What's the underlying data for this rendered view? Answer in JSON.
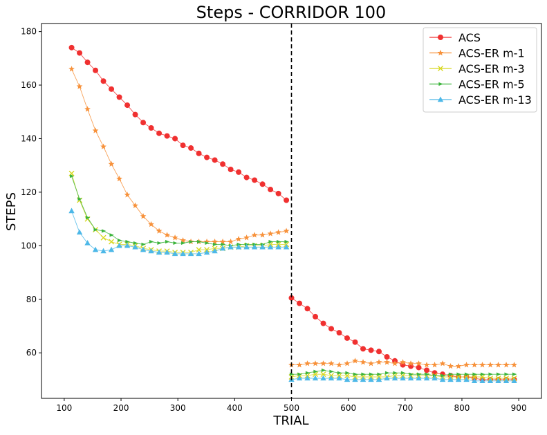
{
  "chart_data": {
    "type": "line",
    "title": "Steps - CORRIDOR 100",
    "xlabel": "TRIAL",
    "ylabel": "STEPS",
    "xlim": [
      60,
      940
    ],
    "ylim": [
      43,
      183
    ],
    "xticks": [
      100,
      200,
      300,
      400,
      500,
      600,
      700,
      800,
      900
    ],
    "yticks": [
      60,
      80,
      100,
      120,
      140,
      160,
      180
    ],
    "grid": false,
    "legend_position": "top-right",
    "vline": {
      "x": 500,
      "style": "dashed",
      "color": "#000000"
    },
    "series": [
      {
        "name": "ACS",
        "color": "#f03030",
        "marker": "circle",
        "x": [
          113,
          127,
          141,
          155,
          169,
          183,
          197,
          211,
          225,
          239,
          253,
          267,
          281,
          295,
          309,
          323,
          337,
          351,
          365,
          379,
          393,
          407,
          421,
          435,
          449,
          463,
          477,
          491,
          500,
          514,
          528,
          542,
          556,
          570,
          584,
          598,
          612,
          626,
          640,
          654,
          668,
          682,
          696,
          710,
          724,
          738,
          752,
          766,
          780,
          794,
          808,
          822,
          836,
          850,
          864,
          878,
          892
        ],
        "y": [
          174,
          172,
          168.5,
          165.5,
          161.5,
          158.5,
          155.5,
          152.5,
          149,
          146,
          144,
          142,
          141,
          140,
          137.5,
          136.5,
          134.5,
          133,
          132,
          130.5,
          128.5,
          127.5,
          125.5,
          124.5,
          123,
          121,
          119.5,
          117,
          80.5,
          78.5,
          76.5,
          73.5,
          71,
          69,
          67.5,
          65.5,
          64,
          61.5,
          61,
          60.5,
          58.5,
          57,
          55.5,
          55,
          54.5,
          53.5,
          52.5,
          52,
          51.5,
          51,
          51,
          50.5,
          50,
          50,
          50,
          50,
          50
        ]
      },
      {
        "name": "ACS-ER m-1",
        "color": "#f7913a",
        "marker": "star",
        "x": [
          113,
          127,
          141,
          155,
          169,
          183,
          197,
          211,
          225,
          239,
          253,
          267,
          281,
          295,
          309,
          323,
          337,
          351,
          365,
          379,
          393,
          407,
          421,
          435,
          449,
          463,
          477,
          491,
          500,
          514,
          528,
          542,
          556,
          570,
          584,
          598,
          612,
          626,
          640,
          654,
          668,
          682,
          696,
          710,
          724,
          738,
          752,
          766,
          780,
          794,
          808,
          822,
          836,
          850,
          864,
          878,
          892
        ],
        "y": [
          166,
          159.5,
          151,
          143,
          137,
          130.5,
          125,
          119,
          115,
          111,
          108,
          105.5,
          104,
          103,
          102,
          101.5,
          101.5,
          101.5,
          101.5,
          101.5,
          101.5,
          102.5,
          103,
          104,
          104,
          104.5,
          105,
          105.5,
          55.5,
          55.5,
          56,
          56,
          56,
          56,
          55.5,
          56,
          57,
          56.5,
          56,
          56.5,
          56.5,
          56,
          56.5,
          56,
          56,
          55.5,
          55.5,
          56,
          55,
          55,
          55.5,
          55.5,
          55.5,
          55.5,
          55.5,
          55.5,
          55.5
        ]
      },
      {
        "name": "ACS-ER m-3",
        "color": "#d8d820",
        "marker": "x",
        "x": [
          113,
          127,
          141,
          155,
          169,
          183,
          197,
          211,
          225,
          239,
          253,
          267,
          281,
          295,
          309,
          323,
          337,
          351,
          365,
          379,
          393,
          407,
          421,
          435,
          449,
          463,
          477,
          491,
          500,
          514,
          528,
          542,
          556,
          570,
          584,
          598,
          612,
          626,
          640,
          654,
          668,
          682,
          696,
          710,
          724,
          738,
          752,
          766,
          780,
          794,
          808,
          822,
          836,
          850,
          864,
          878,
          892
        ],
        "y": [
          127,
          117,
          110,
          106,
          103,
          101.5,
          100.5,
          100.5,
          100,
          99,
          98.5,
          98,
          98,
          97.5,
          97.5,
          97.5,
          98.5,
          98.5,
          99,
          99,
          99.5,
          99.5,
          100,
          100,
          100,
          100.5,
          100.5,
          100.5,
          51,
          51.5,
          51.5,
          52,
          52,
          51.5,
          51.5,
          51.5,
          51,
          51,
          51,
          51,
          51,
          51.5,
          51.5,
          51.5,
          51.5,
          51.5,
          51.5,
          51,
          51,
          51,
          51,
          51,
          51,
          50.5,
          50.5,
          50.5,
          50.5
        ]
      },
      {
        "name": "ACS-ER m-5",
        "color": "#3cb43c",
        "marker": "triangle-right",
        "x": [
          113,
          127,
          141,
          155,
          169,
          183,
          197,
          211,
          225,
          239,
          253,
          267,
          281,
          295,
          309,
          323,
          337,
          351,
          365,
          379,
          393,
          407,
          421,
          435,
          449,
          463,
          477,
          491,
          500,
          514,
          528,
          542,
          556,
          570,
          584,
          598,
          612,
          626,
          640,
          654,
          668,
          682,
          696,
          710,
          724,
          738,
          752,
          766,
          780,
          794,
          808,
          822,
          836,
          850,
          864,
          878,
          892
        ],
        "y": [
          126,
          117.5,
          110.5,
          106,
          105.5,
          104,
          102,
          101.5,
          101,
          100.5,
          101.5,
          101,
          101.5,
          101,
          101,
          101.5,
          101.5,
          101,
          100.5,
          100.5,
          100,
          100.5,
          100.5,
          100.5,
          100.5,
          101.5,
          101.5,
          101.5,
          52,
          52,
          52.5,
          53,
          53.5,
          53,
          52.5,
          52.5,
          52,
          52,
          52,
          52,
          52.5,
          52.5,
          52.5,
          52,
          52,
          52,
          51.5,
          51.5,
          52,
          52,
          52,
          52,
          52,
          52,
          52,
          52,
          52
        ]
      },
      {
        "name": "ACS-ER m-13",
        "color": "#4db8e8",
        "marker": "triangle-up",
        "x": [
          113,
          127,
          141,
          155,
          169,
          183,
          197,
          211,
          225,
          239,
          253,
          267,
          281,
          295,
          309,
          323,
          337,
          351,
          365,
          379,
          393,
          407,
          421,
          435,
          449,
          463,
          477,
          491,
          500,
          514,
          528,
          542,
          556,
          570,
          584,
          598,
          612,
          626,
          640,
          654,
          668,
          682,
          696,
          710,
          724,
          738,
          752,
          766,
          780,
          794,
          808,
          822,
          836,
          850,
          864,
          878,
          892
        ],
        "y": [
          113,
          105,
          101,
          98.5,
          98,
          98.5,
          100,
          100,
          99.5,
          98.5,
          98,
          97.5,
          97.5,
          97,
          97,
          97,
          97,
          97.5,
          98,
          99,
          99.5,
          99.5,
          99.5,
          99.5,
          99.5,
          99.5,
          99.5,
          99.5,
          50,
          50.5,
          50.5,
          50.5,
          50.5,
          50.5,
          50.5,
          50,
          50,
          50,
          50,
          50,
          50.5,
          50.5,
          50.5,
          50.5,
          50.5,
          50.5,
          50.5,
          50,
          50,
          50,
          50,
          49.5,
          49.5,
          49.5,
          49.5,
          49.5,
          49.5
        ]
      }
    ]
  }
}
